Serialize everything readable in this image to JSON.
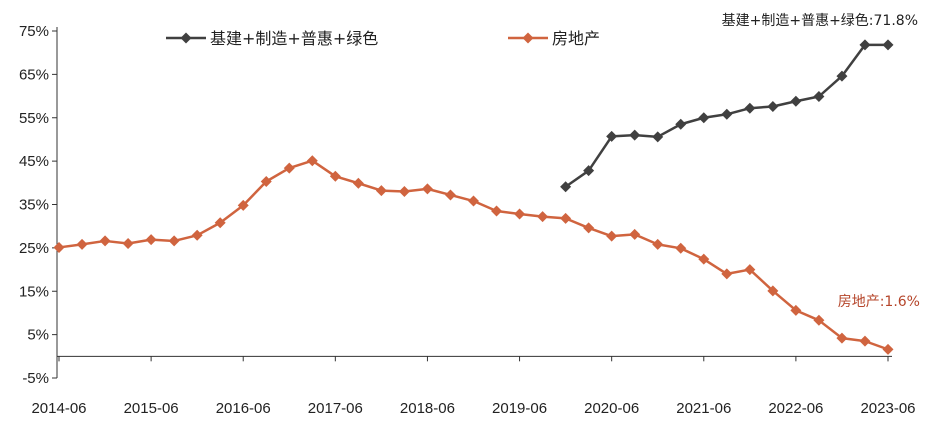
{
  "chart_data": {
    "type": "line",
    "y_ticks": [
      "75%",
      "65%",
      "55%",
      "45%",
      "35%",
      "25%",
      "15%",
      "5%",
      "-5%"
    ],
    "y_tick_values": [
      75,
      65,
      55,
      45,
      35,
      25,
      15,
      5,
      -5
    ],
    "ylim": [
      -5,
      75
    ],
    "x_ticks": [
      "2014-06",
      "2015-06",
      "2016-06",
      "2017-06",
      "2018-06",
      "2019-06",
      "2020-06",
      "2021-06",
      "2022-06",
      "2023-06"
    ],
    "x": [
      "2014-06",
      "2014-09",
      "2014-12",
      "2015-03",
      "2015-06",
      "2015-09",
      "2015-12",
      "2016-03",
      "2016-06",
      "2016-09",
      "2016-12",
      "2017-03",
      "2017-06",
      "2017-09",
      "2017-12",
      "2018-03",
      "2018-06",
      "2018-09",
      "2018-12",
      "2019-03",
      "2019-06",
      "2019-09",
      "2019-12",
      "2020-03",
      "2020-06",
      "2020-09",
      "2020-12",
      "2021-03",
      "2021-06",
      "2021-09",
      "2021-12",
      "2022-03",
      "2022-06",
      "2022-09",
      "2022-12",
      "2023-03",
      "2023-06"
    ],
    "series": [
      {
        "name": "基建+制造+普惠+绿色",
        "color": "#404040",
        "marker": "diamond",
        "values": [
          null,
          null,
          null,
          null,
          null,
          null,
          null,
          null,
          null,
          null,
          null,
          null,
          null,
          null,
          null,
          null,
          null,
          null,
          null,
          null,
          null,
          null,
          39.1,
          42.8,
          50.7,
          51.0,
          50.6,
          53.5,
          55.0,
          55.8,
          57.2,
          57.6,
          58.8,
          59.9,
          64.6,
          71.8,
          71.8
        ]
      },
      {
        "name": "房地产",
        "color": "#D0643F",
        "marker": "diamond",
        "values": [
          25.1,
          25.8,
          26.6,
          26.0,
          26.9,
          26.6,
          27.9,
          30.8,
          34.8,
          40.3,
          43.4,
          45.1,
          41.5,
          39.9,
          38.2,
          38.0,
          38.6,
          37.2,
          35.8,
          33.5,
          32.8,
          32.2,
          31.8,
          29.6,
          27.7,
          28.1,
          25.8,
          24.9,
          22.4,
          19.0,
          20.0,
          15.1,
          10.6,
          8.3,
          4.2,
          3.5,
          1.6
        ]
      }
    ],
    "annotations": [
      {
        "text": "基建+制造+普惠+绿色:71.8%",
        "color": "#222222"
      },
      {
        "text": "房地产:1.6%",
        "color": "#B5452A"
      }
    ],
    "legend_placement": "top"
  }
}
